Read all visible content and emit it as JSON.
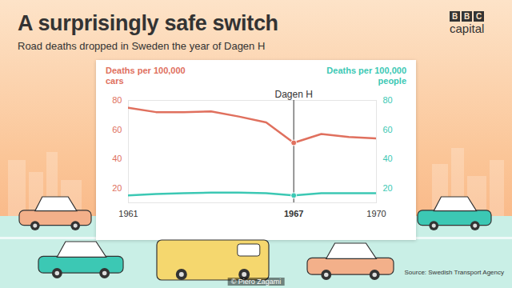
{
  "chart_data": {
    "type": "line",
    "title": "A surprisingly safe switch",
    "subtitle": "Road deaths dropped in Sweden the year of Dagen H",
    "logo": {
      "top": "BBC",
      "bottom": "capital"
    },
    "x": [
      1961,
      1962,
      1963,
      1964,
      1965,
      1966,
      1967,
      1968,
      1969,
      1970
    ],
    "xlim": [
      1961,
      1970
    ],
    "xticks": [
      1961,
      1967,
      1970
    ],
    "ylim": [
      10,
      80
    ],
    "yticks": [
      20,
      40,
      60,
      80
    ],
    "y2lim": [
      10,
      80
    ],
    "y2ticks": [
      20,
      40,
      60,
      80
    ],
    "grid": false,
    "series": [
      {
        "name": "Deaths per 100,000 cars",
        "color": "#e0705e",
        "values": [
          75,
          72,
          72,
          72.5,
          69,
          65,
          51,
          57,
          55,
          54
        ]
      },
      {
        "name": "Deaths per 100,000 people",
        "color": "#3cc8b4",
        "axis": "y2",
        "values": [
          15,
          16,
          16.5,
          17,
          17,
          16.5,
          15,
          16.5,
          16.5,
          16.5
        ]
      }
    ],
    "annotations": [
      {
        "x": 1967,
        "text": "Dagen H"
      }
    ],
    "source": "Source: Swedish Transport Agency",
    "credit": "© Piero Zagami"
  }
}
